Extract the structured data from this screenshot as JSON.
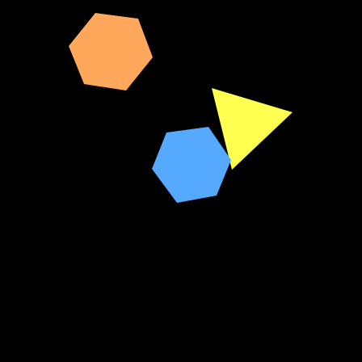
{
  "background_color": "#000000",
  "shapes": [
    {
      "name": "orange-hexagon",
      "kind": "hexagon",
      "color": "#FFA75A"
    },
    {
      "name": "yellow-triangle",
      "kind": "triangle",
      "color": "#FFFF50"
    },
    {
      "name": "blue-hexagon",
      "kind": "hexagon",
      "color": "#55A9FF"
    }
  ]
}
